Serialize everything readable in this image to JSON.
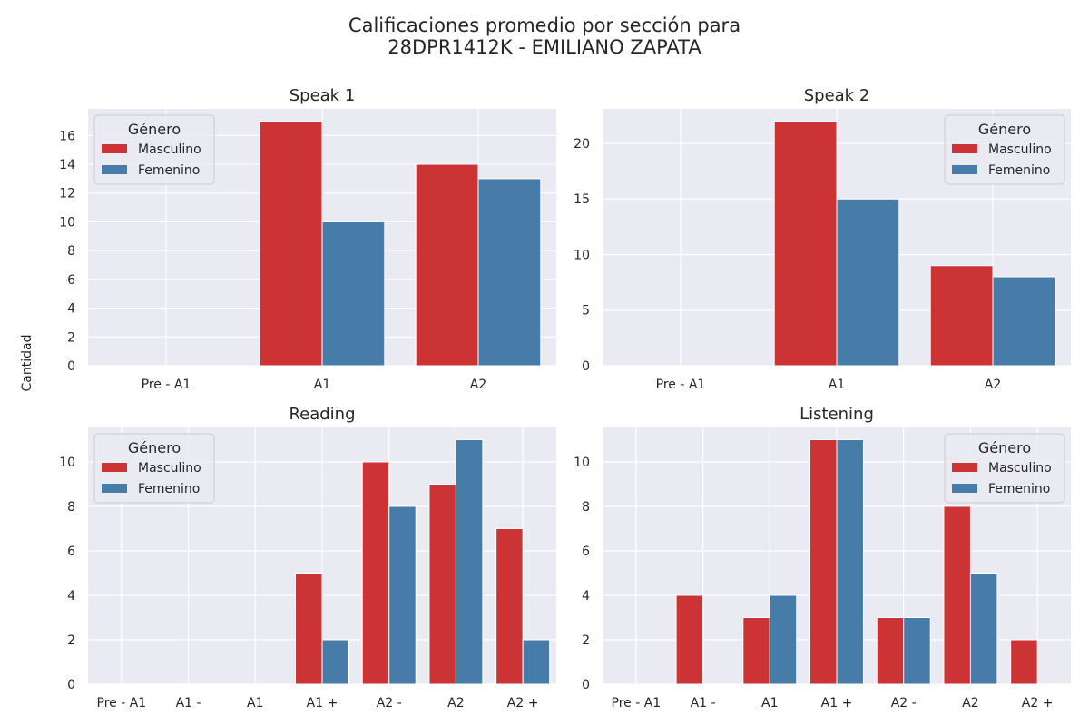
{
  "figure": {
    "title_line1": "Calificaciones promedio por sección para",
    "title_line2": "28DPR1412K - EMILIANO ZAPATA",
    "ylabel": "Cantidad"
  },
  "colors": {
    "Masculino": "#cb3335",
    "Femenino": "#477ca8",
    "plot_bg": "#eaeaf2",
    "grid": "#ffffff"
  },
  "chart_data": [
    {
      "type": "bar",
      "title": "Speak 1",
      "categories": [
        "Pre - A1",
        "A1",
        "A2"
      ],
      "series": [
        {
          "name": "Masculino",
          "values": [
            0,
            17,
            14
          ]
        },
        {
          "name": "Femenino",
          "values": [
            0,
            10,
            13
          ]
        }
      ],
      "ylim": [
        0,
        17.85
      ],
      "yticks": [
        0,
        2,
        4,
        6,
        8,
        10,
        12,
        14,
        16
      ],
      "legend": {
        "title": "Género",
        "position": "top-left"
      },
      "grid": true
    },
    {
      "type": "bar",
      "title": "Speak 2",
      "categories": [
        "Pre - A1",
        "A1",
        "A2"
      ],
      "series": [
        {
          "name": "Masculino",
          "values": [
            0,
            22,
            9
          ]
        },
        {
          "name": "Femenino",
          "values": [
            0,
            15,
            8
          ]
        }
      ],
      "ylim": [
        0,
        23.1
      ],
      "yticks": [
        0,
        5,
        10,
        15,
        20
      ],
      "legend": {
        "title": "Género",
        "position": "top-right"
      },
      "grid": true
    },
    {
      "type": "bar",
      "title": "Reading",
      "categories": [
        "Pre - A1",
        "A1 -",
        "A1",
        "A1 +",
        "A2 -",
        "A2",
        "A2 +"
      ],
      "series": [
        {
          "name": "Masculino",
          "values": [
            0,
            0,
            0,
            5,
            10,
            9,
            7
          ]
        },
        {
          "name": "Femenino",
          "values": [
            0,
            0,
            0,
            2,
            8,
            11,
            2
          ]
        }
      ],
      "ylim": [
        0,
        11.55
      ],
      "yticks": [
        0,
        2,
        4,
        6,
        8,
        10
      ],
      "legend": {
        "title": "Género",
        "position": "top-left"
      },
      "grid": true
    },
    {
      "type": "bar",
      "title": "Listening",
      "categories": [
        "Pre - A1",
        "A1 -",
        "A1",
        "A1 +",
        "A2 -",
        "A2",
        "A2 +"
      ],
      "series": [
        {
          "name": "Masculino",
          "values": [
            0,
            4,
            3,
            11,
            3,
            8,
            2
          ]
        },
        {
          "name": "Femenino",
          "values": [
            0,
            0,
            4,
            11,
            3,
            5,
            0
          ]
        }
      ],
      "ylim": [
        0,
        11.55
      ],
      "yticks": [
        0,
        2,
        4,
        6,
        8,
        10
      ],
      "legend": {
        "title": "Género",
        "position": "top-right"
      },
      "grid": true
    }
  ]
}
